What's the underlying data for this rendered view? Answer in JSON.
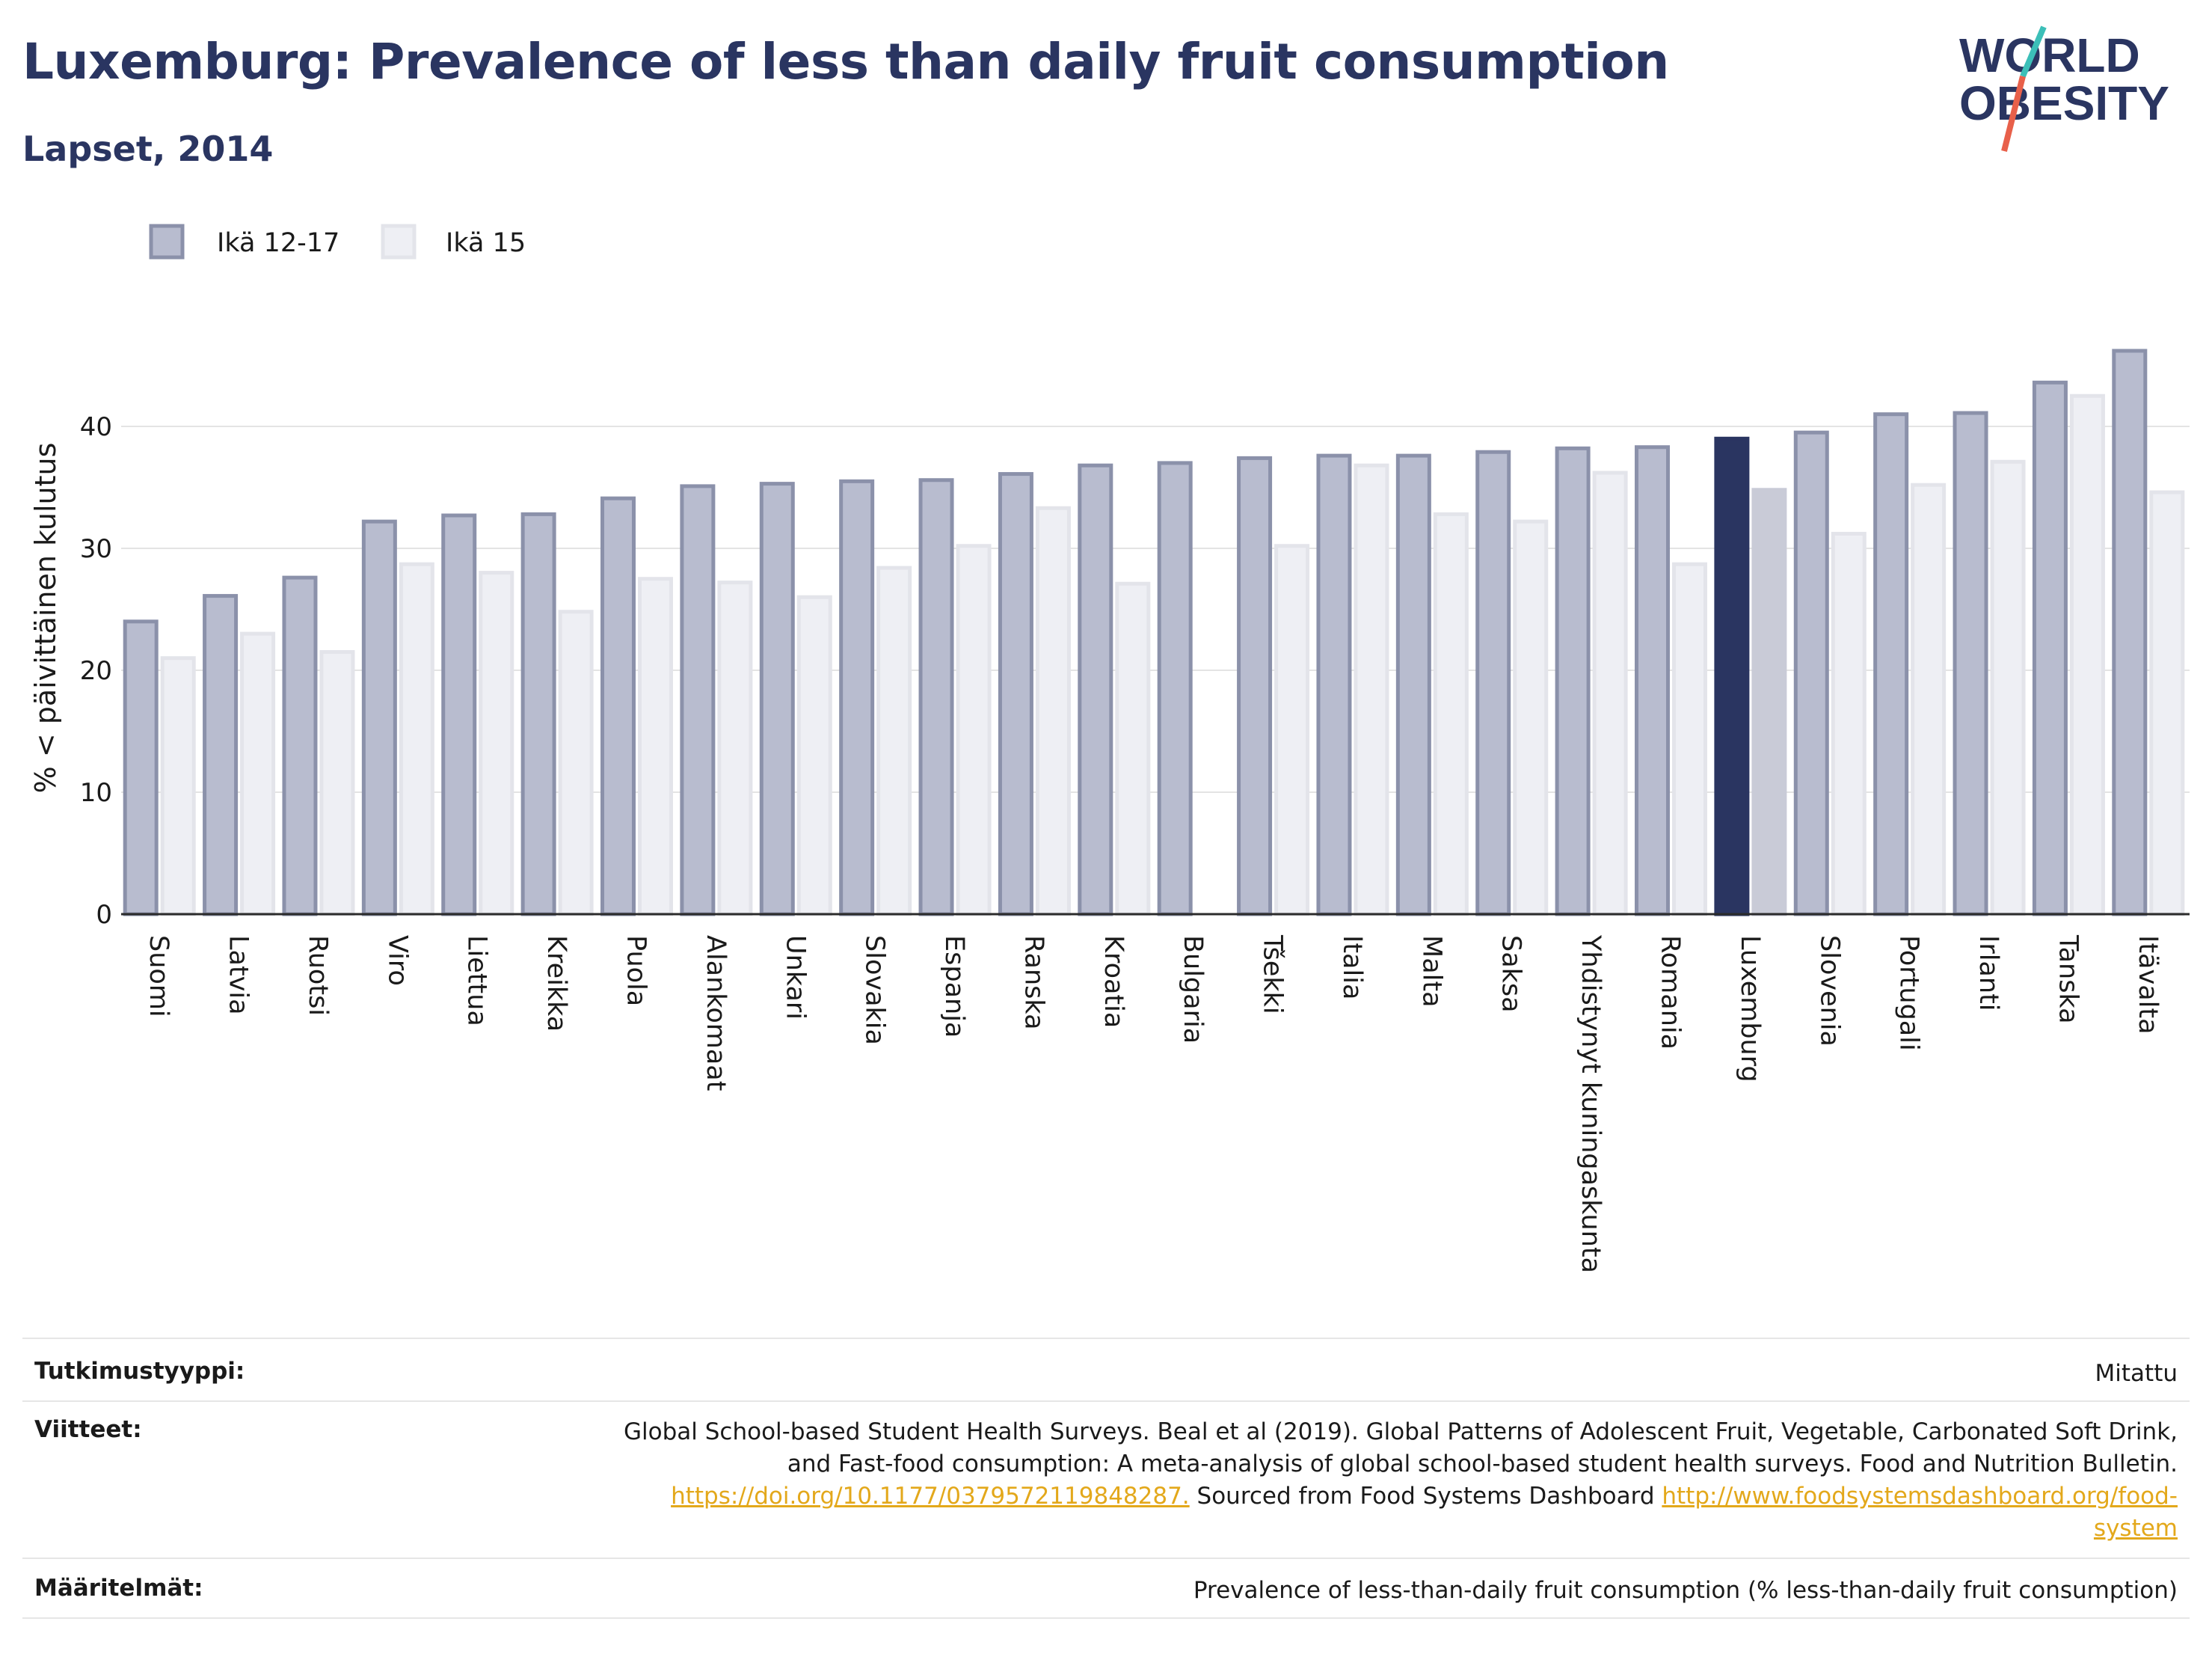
{
  "title": "Luxemburg: Prevalence of less than daily fruit consumption",
  "subtitle": "Lapset, 2014",
  "logo": {
    "line1": "WORLD",
    "line2": "OBESITY",
    "slash_colors": [
      "#3cbfb8",
      "#e8604a"
    ]
  },
  "colors": {
    "title": "#2a3561",
    "series_a_fill": "#b8bccf",
    "series_a_stroke": "#8b91aa",
    "series_b_fill": "#eeeff4",
    "series_b_stroke": "#e3e4ea",
    "highlight_a": "#2a3561",
    "highlight_b": "#c9cbd7",
    "link": "#e3a81b"
  },
  "chart_data": {
    "type": "bar",
    "ylabel": "% < päivittäinen kulutus",
    "ylim": [
      0,
      50
    ],
    "yticks": [
      0,
      10,
      20,
      30,
      40
    ],
    "grid": true,
    "legend_position": "top-left",
    "highlight": "Luxemburg",
    "categories": [
      "Suomi",
      "Latvia",
      "Ruotsi",
      "Viro",
      "Liettua",
      "Kreikka",
      "Puola",
      "Alankomaat",
      "Unkari",
      "Slovakia",
      "Espanja",
      "Ranska",
      "Kroatia",
      "Bulgaria",
      "Tšekki",
      "Italia",
      "Malta",
      "Saksa",
      "Yhdistynyt kuningaskunta",
      "Romania",
      "Luxemburg",
      "Slovenia",
      "Portugali",
      "Irlanti",
      "Tanska",
      "Itävalta"
    ],
    "series": [
      {
        "name": "Ikä 12-17",
        "values": [
          24.0,
          26.1,
          27.6,
          32.2,
          32.7,
          32.8,
          34.1,
          35.1,
          35.3,
          35.5,
          35.6,
          36.1,
          36.8,
          37.0,
          37.4,
          37.6,
          37.6,
          37.9,
          38.2,
          38.3,
          39.0,
          39.5,
          41.0,
          41.1,
          43.6,
          46.2
        ]
      },
      {
        "name": "Ikä 15",
        "values": [
          21.0,
          23.0,
          21.5,
          28.7,
          28.0,
          24.8,
          27.5,
          27.2,
          26.0,
          28.4,
          30.2,
          33.3,
          27.1,
          null,
          30.2,
          36.8,
          32.8,
          32.2,
          36.2,
          28.7,
          34.8,
          31.2,
          35.2,
          37.1,
          42.5,
          34.6
        ]
      }
    ]
  },
  "meta": {
    "study_type_label": "Tutkimustyyppi:",
    "study_type_value": "Mitattu",
    "references_label": "Viitteet:",
    "references_line1": "Global School-based Student Health Surveys. Beal et al (2019). Global Patterns of Adolescent Fruit, Vegetable, Carbonated Soft Drink,",
    "references_line2": "and Fast-food consumption: A meta-analysis of global school-based student health surveys. Food and Nutrition Bulletin.",
    "references_link1": "https://doi.org/10.1177/0379572119848287.",
    "references_mid": " Sourced from Food Systems Dashboard ",
    "references_link2a": "http://www.foodsystemsdashboard.org/food-",
    "references_link2b": "system",
    "definitions_label": "Määritelmät:",
    "definitions_value": "Prevalence of less-than-daily fruit consumption (% less-than-daily fruit consumption)"
  }
}
